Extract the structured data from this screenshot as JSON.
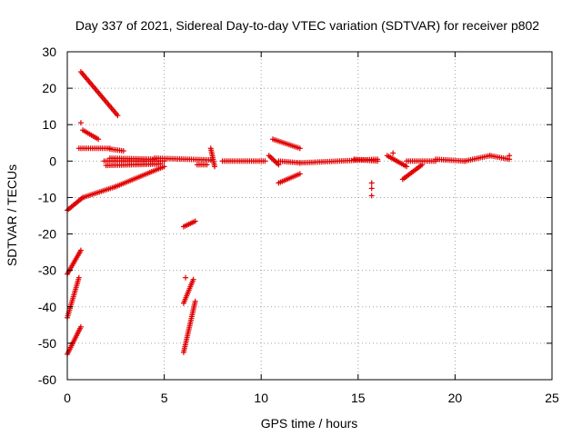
{
  "chart_data": {
    "type": "scatter",
    "title": "Day 337 of 2021, Sidereal Day-to-day VTEC variation (SDTVAR) for receiver p802",
    "xlabel": "GPS time / hours",
    "ylabel": "SDTVAR / TECUs",
    "xlim": [
      0,
      25
    ],
    "ylim": [
      -60,
      30
    ],
    "xticks": [
      0,
      5,
      10,
      15,
      20,
      25
    ],
    "yticks": [
      -60,
      -50,
      -40,
      -30,
      -20,
      -10,
      0,
      10,
      20,
      30
    ],
    "grid": true,
    "marker": "plus",
    "color": "#ee0000",
    "segments": [
      {
        "x0": 0.7,
        "y0": 24.5,
        "x1": 2.6,
        "y1": 12.5
      },
      {
        "x0": 0.8,
        "y0": 8.5,
        "x1": 1.6,
        "y1": 6.0
      },
      {
        "x0": 0.6,
        "y0": 3.5,
        "x1": 2.2,
        "y1": 3.5
      },
      {
        "x0": 2.2,
        "y0": 3.3,
        "x1": 2.9,
        "y1": 2.8
      },
      {
        "x0": 0.0,
        "y0": -13.5,
        "x1": 0.8,
        "y1": -10.0
      },
      {
        "x0": 0.8,
        "y0": -10.0,
        "x1": 2.5,
        "y1": -7.0
      },
      {
        "x0": 2.5,
        "y0": -7.0,
        "x1": 5.0,
        "y1": -1.5
      },
      {
        "x0": 1.9,
        "y0": 0.0,
        "x1": 5.0,
        "y1": 0.0
      },
      {
        "x0": 2.0,
        "y0": -1.2,
        "x1": 4.8,
        "y1": -0.8
      },
      {
        "x0": 2.2,
        "y0": 0.8,
        "x1": 4.5,
        "y1": 0.5
      },
      {
        "x0": 4.5,
        "y0": 0.8,
        "x1": 7.4,
        "y1": 0.3
      },
      {
        "x0": 6.7,
        "y0": -1.0,
        "x1": 7.2,
        "y1": -1.0
      },
      {
        "x0": 7.4,
        "y0": 3.5,
        "x1": 7.6,
        "y1": -1.5
      },
      {
        "x0": 8.0,
        "y0": 0.0,
        "x1": 10.2,
        "y1": 0.0
      },
      {
        "x0": 10.4,
        "y0": 1.5,
        "x1": 10.9,
        "y1": -1.0
      },
      {
        "x0": 10.6,
        "y0": 6.0,
        "x1": 12.0,
        "y1": 3.5
      },
      {
        "x0": 10.9,
        "y0": 0.0,
        "x1": 12.0,
        "y1": -0.5
      },
      {
        "x0": 10.9,
        "y0": -6.0,
        "x1": 12.0,
        "y1": -3.5
      },
      {
        "x0": 12.0,
        "y0": -0.5,
        "x1": 16.0,
        "y1": 0.5
      },
      {
        "x0": 14.8,
        "y0": 0.5,
        "x1": 16.0,
        "y1": 0.0
      },
      {
        "x0": 16.5,
        "y0": 1.5,
        "x1": 17.5,
        "y1": -1.5
      },
      {
        "x0": 17.3,
        "y0": -5.0,
        "x1": 18.3,
        "y1": -1.0
      },
      {
        "x0": 17.5,
        "y0": 0.0,
        "x1": 19.0,
        "y1": 0.0
      },
      {
        "x0": 19.0,
        "y0": 0.5,
        "x1": 20.5,
        "y1": 0.0
      },
      {
        "x0": 20.5,
        "y0": 0.0,
        "x1": 21.8,
        "y1": 1.5
      },
      {
        "x0": 21.8,
        "y0": 1.5,
        "x1": 22.8,
        "y1": 0.5
      },
      {
        "x0": 0.0,
        "y0": -31.0,
        "x1": 0.7,
        "y1": -24.5
      },
      {
        "x0": 0.0,
        "y0": -43.0,
        "x1": 0.6,
        "y1": -32.0
      },
      {
        "x0": 0.0,
        "y0": -53.0,
        "x1": 0.7,
        "y1": -45.5
      },
      {
        "x0": 6.0,
        "y0": -18.0,
        "x1": 6.6,
        "y1": -16.5
      },
      {
        "x0": 6.0,
        "y0": -39.0,
        "x1": 6.5,
        "y1": -32.5
      },
      {
        "x0": 6.0,
        "y0": -52.5,
        "x1": 6.6,
        "y1": -38.5
      }
    ],
    "isolated_points": [
      {
        "x": 0.7,
        "y": 10.5
      },
      {
        "x": 6.1,
        "y": -32.0
      },
      {
        "x": 15.7,
        "y": -6.0
      },
      {
        "x": 15.7,
        "y": -7.5
      },
      {
        "x": 15.7,
        "y": -9.5
      },
      {
        "x": 16.8,
        "y": 2.2
      },
      {
        "x": 22.8,
        "y": 1.5
      }
    ]
  }
}
